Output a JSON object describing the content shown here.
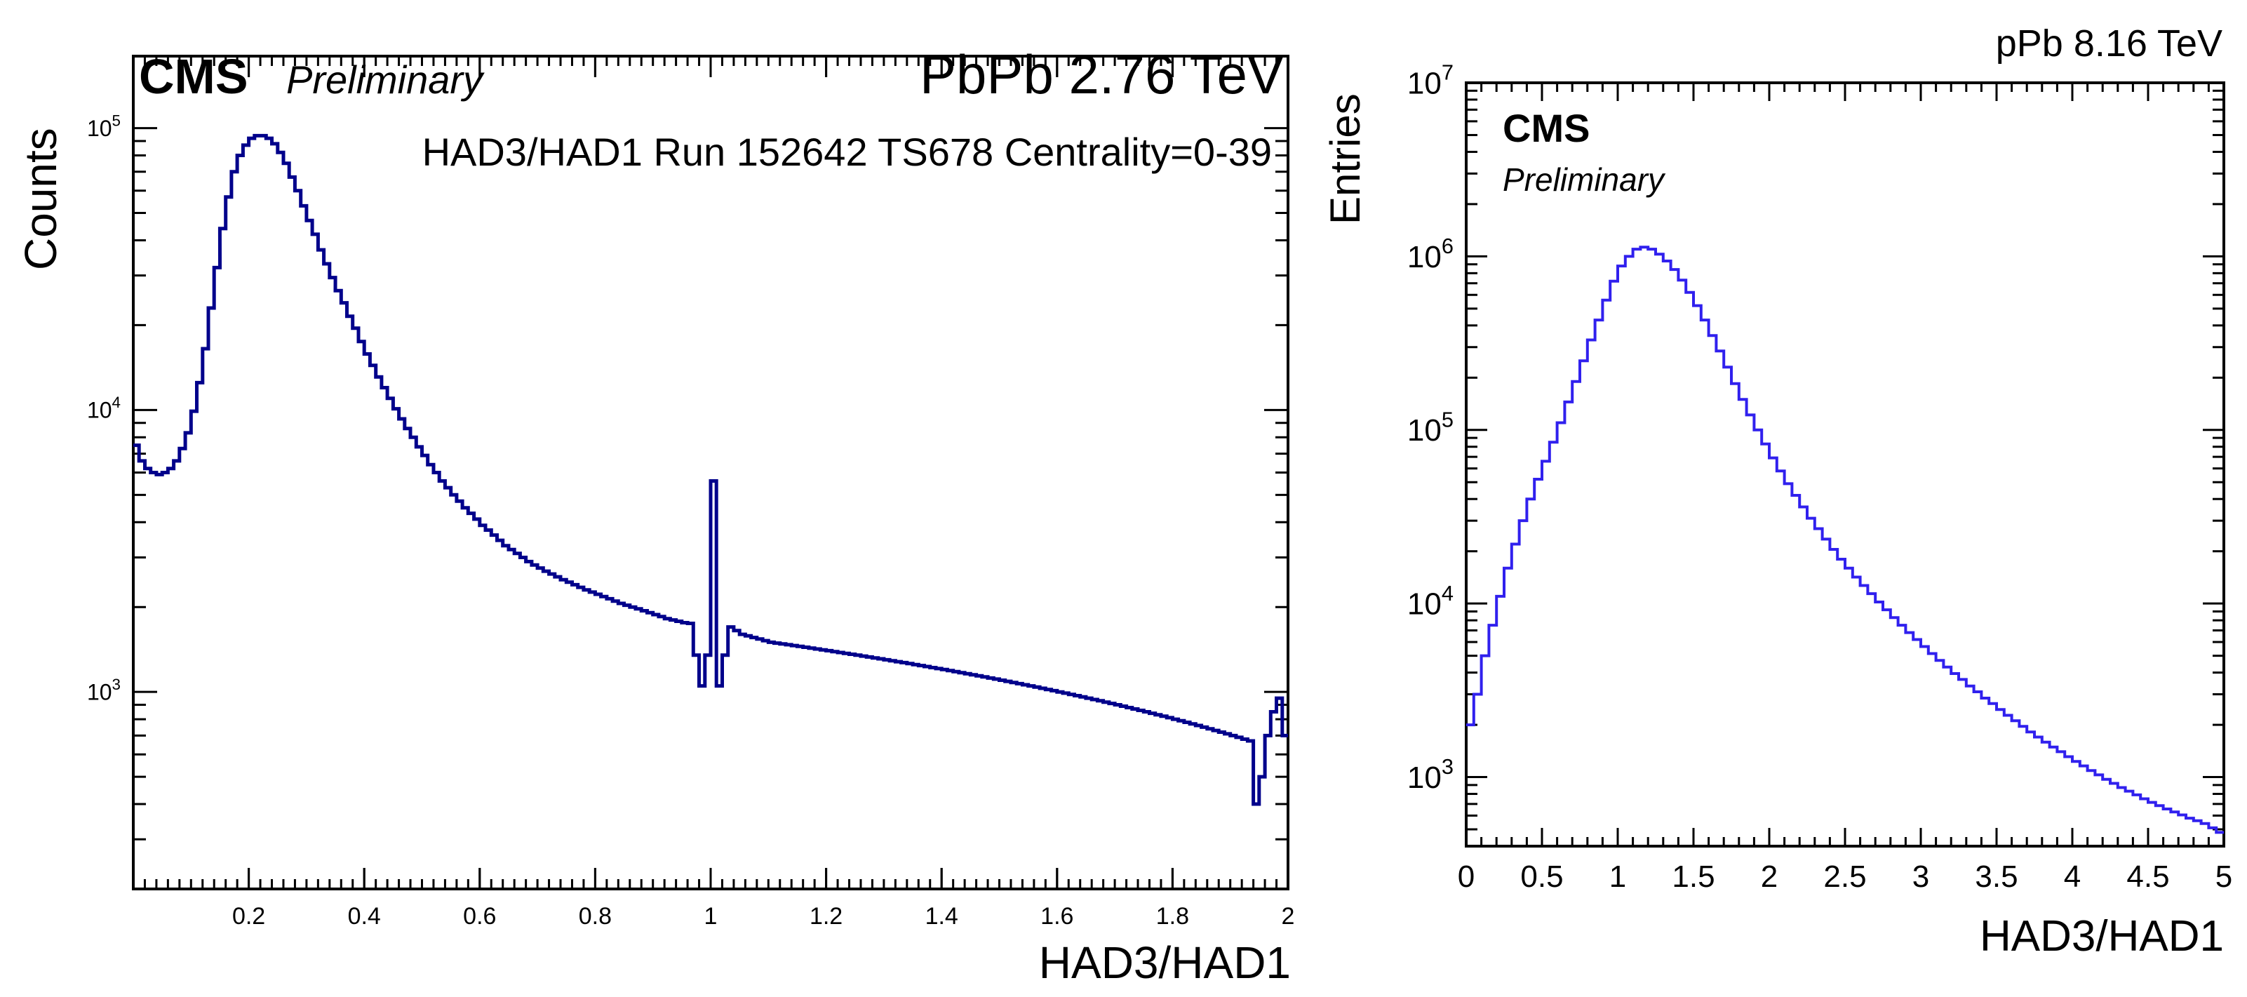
{
  "colors": {
    "histogram_left": "#00008b",
    "histogram_right": "#3020ee",
    "axis": "#000000",
    "background": "#ffffff"
  },
  "chart_data": [
    {
      "type": "histogram",
      "experiment": "CMS",
      "status": "Preliminary",
      "system": "PbPb 2.76 TeV",
      "annotation": "HAD3/HAD1 Run 152642 TS678 Centrality=0-39",
      "xlabel": "HAD3/HAD1",
      "ylabel": "Counts",
      "xlim": [
        0.0,
        2.0
      ],
      "ylim": [
        200,
        180000
      ],
      "log_y": true,
      "grid": false,
      "x_ticks": [
        "0.2",
        "0.4",
        "0.6",
        "0.8",
        "1",
        "1.2",
        "1.4",
        "1.6",
        "1.8",
        "2"
      ],
      "y_ticks": [
        {
          "base": "10",
          "exp": "3",
          "value": 1000
        },
        {
          "base": "10",
          "exp": "4",
          "value": 10000
        },
        {
          "base": "10",
          "exp": "5",
          "value": 100000
        }
      ],
      "bin_width": 0.01,
      "bins": [
        [
          0.0,
          7500
        ],
        [
          0.01,
          6600
        ],
        [
          0.02,
          6200
        ],
        [
          0.03,
          6000
        ],
        [
          0.04,
          5900
        ],
        [
          0.05,
          6000
        ],
        [
          0.06,
          6200
        ],
        [
          0.07,
          6600
        ],
        [
          0.08,
          7300
        ],
        [
          0.09,
          8300
        ],
        [
          0.1,
          9900
        ],
        [
          0.11,
          12500
        ],
        [
          0.12,
          16500
        ],
        [
          0.13,
          23000
        ],
        [
          0.14,
          32000
        ],
        [
          0.15,
          44000
        ],
        [
          0.16,
          57000
        ],
        [
          0.17,
          70000
        ],
        [
          0.18,
          80000
        ],
        [
          0.19,
          87000
        ],
        [
          0.2,
          92000
        ],
        [
          0.21,
          94000
        ],
        [
          0.22,
          94000
        ],
        [
          0.23,
          92000
        ],
        [
          0.24,
          88000
        ],
        [
          0.25,
          82000
        ],
        [
          0.26,
          75000
        ],
        [
          0.27,
          67000
        ],
        [
          0.28,
          60000
        ],
        [
          0.29,
          53000
        ],
        [
          0.3,
          47000
        ],
        [
          0.31,
          42000
        ],
        [
          0.32,
          37000
        ],
        [
          0.33,
          33000
        ],
        [
          0.34,
          29500
        ],
        [
          0.35,
          26500
        ],
        [
          0.36,
          24000
        ],
        [
          0.37,
          21500
        ],
        [
          0.38,
          19500
        ],
        [
          0.39,
          17500
        ],
        [
          0.4,
          15800
        ],
        [
          0.41,
          14400
        ],
        [
          0.42,
          13100
        ],
        [
          0.43,
          12000
        ],
        [
          0.44,
          11000
        ],
        [
          0.45,
          10100
        ],
        [
          0.46,
          9300
        ],
        [
          0.47,
          8600
        ],
        [
          0.48,
          8000
        ],
        [
          0.49,
          7400
        ],
        [
          0.5,
          6900
        ],
        [
          0.51,
          6400
        ],
        [
          0.52,
          6000
        ],
        [
          0.53,
          5600
        ],
        [
          0.54,
          5300
        ],
        [
          0.55,
          5000
        ],
        [
          0.56,
          4750
        ],
        [
          0.57,
          4500
        ],
        [
          0.58,
          4300
        ],
        [
          0.59,
          4100
        ],
        [
          0.6,
          3900
        ],
        [
          0.61,
          3750
        ],
        [
          0.62,
          3600
        ],
        [
          0.63,
          3450
        ],
        [
          0.64,
          3300
        ],
        [
          0.65,
          3200
        ],
        [
          0.66,
          3100
        ],
        [
          0.67,
          3000
        ],
        [
          0.68,
          2900
        ],
        [
          0.69,
          2820
        ],
        [
          0.7,
          2750
        ],
        [
          0.71,
          2680
        ],
        [
          0.72,
          2620
        ],
        [
          0.73,
          2560
        ],
        [
          0.74,
          2500
        ],
        [
          0.75,
          2450
        ],
        [
          0.76,
          2400
        ],
        [
          0.77,
          2350
        ],
        [
          0.78,
          2300
        ],
        [
          0.79,
          2260
        ],
        [
          0.8,
          2220
        ],
        [
          0.81,
          2180
        ],
        [
          0.82,
          2140
        ],
        [
          0.83,
          2100
        ],
        [
          0.84,
          2060
        ],
        [
          0.85,
          2030
        ],
        [
          0.86,
          2000
        ],
        [
          0.87,
          1970
        ],
        [
          0.88,
          1940
        ],
        [
          0.89,
          1910
        ],
        [
          0.9,
          1880
        ],
        [
          0.91,
          1850
        ],
        [
          0.92,
          1820
        ],
        [
          0.93,
          1800
        ],
        [
          0.94,
          1780
        ],
        [
          0.95,
          1760
        ],
        [
          0.96,
          1750
        ],
        [
          0.97,
          1350
        ],
        [
          0.98,
          1050
        ],
        [
          0.99,
          1350
        ],
        [
          1.0,
          5600
        ],
        [
          1.01,
          1050
        ],
        [
          1.02,
          1350
        ],
        [
          1.03,
          1700
        ],
        [
          1.04,
          1650
        ],
        [
          1.05,
          1600
        ],
        [
          1.06,
          1580
        ],
        [
          1.07,
          1560
        ],
        [
          1.08,
          1540
        ],
        [
          1.09,
          1520
        ],
        [
          1.1,
          1500
        ],
        [
          1.11,
          1490
        ],
        [
          1.12,
          1480
        ],
        [
          1.13,
          1470
        ],
        [
          1.14,
          1460
        ],
        [
          1.15,
          1450
        ],
        [
          1.16,
          1440
        ],
        [
          1.17,
          1430
        ],
        [
          1.18,
          1420
        ],
        [
          1.19,
          1410
        ],
        [
          1.2,
          1400
        ],
        [
          1.21,
          1390
        ],
        [
          1.22,
          1380
        ],
        [
          1.23,
          1370
        ],
        [
          1.24,
          1360
        ],
        [
          1.25,
          1350
        ],
        [
          1.26,
          1340
        ],
        [
          1.27,
          1330
        ],
        [
          1.28,
          1320
        ],
        [
          1.29,
          1310
        ],
        [
          1.3,
          1300
        ],
        [
          1.31,
          1290
        ],
        [
          1.32,
          1280
        ],
        [
          1.33,
          1270
        ],
        [
          1.34,
          1260
        ],
        [
          1.35,
          1250
        ],
        [
          1.36,
          1240
        ],
        [
          1.37,
          1230
        ],
        [
          1.38,
          1220
        ],
        [
          1.39,
          1210
        ],
        [
          1.4,
          1200
        ],
        [
          1.41,
          1190
        ],
        [
          1.42,
          1180
        ],
        [
          1.43,
          1170
        ],
        [
          1.44,
          1160
        ],
        [
          1.45,
          1150
        ],
        [
          1.46,
          1140
        ],
        [
          1.47,
          1130
        ],
        [
          1.48,
          1120
        ],
        [
          1.49,
          1110
        ],
        [
          1.5,
          1100
        ],
        [
          1.51,
          1090
        ],
        [
          1.52,
          1080
        ],
        [
          1.53,
          1070
        ],
        [
          1.54,
          1060
        ],
        [
          1.55,
          1050
        ],
        [
          1.56,
          1040
        ],
        [
          1.57,
          1030
        ],
        [
          1.58,
          1020
        ],
        [
          1.59,
          1010
        ],
        [
          1.6,
          1000
        ],
        [
          1.61,
          990
        ],
        [
          1.62,
          980
        ],
        [
          1.63,
          970
        ],
        [
          1.64,
          960
        ],
        [
          1.65,
          950
        ],
        [
          1.66,
          940
        ],
        [
          1.67,
          930
        ],
        [
          1.68,
          920
        ],
        [
          1.69,
          910
        ],
        [
          1.7,
          900
        ],
        [
          1.71,
          890
        ],
        [
          1.72,
          880
        ],
        [
          1.73,
          870
        ],
        [
          1.74,
          860
        ],
        [
          1.75,
          850
        ],
        [
          1.76,
          840
        ],
        [
          1.77,
          830
        ],
        [
          1.78,
          820
        ],
        [
          1.79,
          810
        ],
        [
          1.8,
          800
        ],
        [
          1.81,
          790
        ],
        [
          1.82,
          780
        ],
        [
          1.83,
          770
        ],
        [
          1.84,
          760
        ],
        [
          1.85,
          750
        ],
        [
          1.86,
          740
        ],
        [
          1.87,
          730
        ],
        [
          1.88,
          720
        ],
        [
          1.89,
          710
        ],
        [
          1.9,
          700
        ],
        [
          1.91,
          690
        ],
        [
          1.92,
          680
        ],
        [
          1.93,
          670
        ],
        [
          1.94,
          400
        ],
        [
          1.95,
          500
        ],
        [
          1.96,
          700
        ],
        [
          1.97,
          850
        ],
        [
          1.98,
          950
        ],
        [
          1.99,
          700
        ]
      ]
    },
    {
      "type": "histogram",
      "experiment": "CMS",
      "status": "Preliminary",
      "system": "pPb 8.16 TeV",
      "xlabel": "HAD3/HAD1",
      "ylabel": "Entries",
      "xlim": [
        0.0,
        5.0
      ],
      "ylim": [
        400,
        10000000
      ],
      "log_y": true,
      "grid": false,
      "x_ticks": [
        "0",
        "0.5",
        "1",
        "1.5",
        "2",
        "2.5",
        "3",
        "3.5",
        "4",
        "4.5",
        "5"
      ],
      "y_ticks": [
        {
          "base": "10",
          "exp": "3",
          "value": 1000
        },
        {
          "base": "10",
          "exp": "4",
          "value": 10000
        },
        {
          "base": "10",
          "exp": "5",
          "value": 100000
        },
        {
          "base": "10",
          "exp": "6",
          "value": 1000000
        },
        {
          "base": "10",
          "exp": "7",
          "value": 10000000
        }
      ],
      "bin_width": 0.05,
      "bins": [
        [
          0.0,
          2000
        ],
        [
          0.05,
          3000
        ],
        [
          0.1,
          5000
        ],
        [
          0.15,
          7500
        ],
        [
          0.2,
          11000
        ],
        [
          0.25,
          16000
        ],
        [
          0.3,
          22000
        ],
        [
          0.35,
          30000
        ],
        [
          0.4,
          40000
        ],
        [
          0.45,
          52000
        ],
        [
          0.5,
          66000
        ],
        [
          0.55,
          85000
        ],
        [
          0.6,
          110000
        ],
        [
          0.65,
          145000
        ],
        [
          0.7,
          190000
        ],
        [
          0.75,
          250000
        ],
        [
          0.8,
          330000
        ],
        [
          0.85,
          430000
        ],
        [
          0.9,
          560000
        ],
        [
          0.95,
          720000
        ],
        [
          1.0,
          880000
        ],
        [
          1.05,
          1000000
        ],
        [
          1.1,
          1100000
        ],
        [
          1.15,
          1130000
        ],
        [
          1.2,
          1100000
        ],
        [
          1.25,
          1030000
        ],
        [
          1.3,
          940000
        ],
        [
          1.35,
          840000
        ],
        [
          1.4,
          730000
        ],
        [
          1.45,
          620000
        ],
        [
          1.5,
          520000
        ],
        [
          1.55,
          430000
        ],
        [
          1.6,
          350000
        ],
        [
          1.65,
          285000
        ],
        [
          1.7,
          230000
        ],
        [
          1.75,
          185000
        ],
        [
          1.8,
          150000
        ],
        [
          1.85,
          122000
        ],
        [
          1.9,
          100000
        ],
        [
          1.95,
          83000
        ],
        [
          2.0,
          69000
        ],
        [
          2.05,
          58000
        ],
        [
          2.1,
          49000
        ],
        [
          2.15,
          42000
        ],
        [
          2.2,
          36000
        ],
        [
          2.25,
          31000
        ],
        [
          2.3,
          27000
        ],
        [
          2.35,
          23500
        ],
        [
          2.4,
          20500
        ],
        [
          2.45,
          18000
        ],
        [
          2.5,
          16000
        ],
        [
          2.55,
          14200
        ],
        [
          2.6,
          12700
        ],
        [
          2.65,
          11400
        ],
        [
          2.7,
          10200
        ],
        [
          2.75,
          9200
        ],
        [
          2.8,
          8300
        ],
        [
          2.85,
          7500
        ],
        [
          2.9,
          6800
        ],
        [
          2.95,
          6200
        ],
        [
          3.0,
          5650
        ],
        [
          3.05,
          5150
        ],
        [
          3.1,
          4700
        ],
        [
          3.15,
          4300
        ],
        [
          3.2,
          3950
        ],
        [
          3.25,
          3650
        ],
        [
          3.3,
          3350
        ],
        [
          3.35,
          3100
        ],
        [
          3.4,
          2850
        ],
        [
          3.45,
          2650
        ],
        [
          3.5,
          2450
        ],
        [
          3.55,
          2270
        ],
        [
          3.6,
          2110
        ],
        [
          3.65,
          1960
        ],
        [
          3.7,
          1820
        ],
        [
          3.75,
          1700
        ],
        [
          3.8,
          1590
        ],
        [
          3.85,
          1490
        ],
        [
          3.9,
          1400
        ],
        [
          3.95,
          1310
        ],
        [
          4.0,
          1230
        ],
        [
          4.05,
          1160
        ],
        [
          4.1,
          1090
        ],
        [
          4.15,
          1030
        ],
        [
          4.2,
          970
        ],
        [
          4.25,
          920
        ],
        [
          4.3,
          870
        ],
        [
          4.35,
          830
        ],
        [
          4.4,
          790
        ],
        [
          4.45,
          750
        ],
        [
          4.5,
          715
        ],
        [
          4.55,
          685
        ],
        [
          4.6,
          655
        ],
        [
          4.65,
          630
        ],
        [
          4.7,
          605
        ],
        [
          4.75,
          580
        ],
        [
          4.8,
          560
        ],
        [
          4.85,
          540
        ],
        [
          4.9,
          510
        ],
        [
          4.95,
          480
        ]
      ]
    }
  ]
}
